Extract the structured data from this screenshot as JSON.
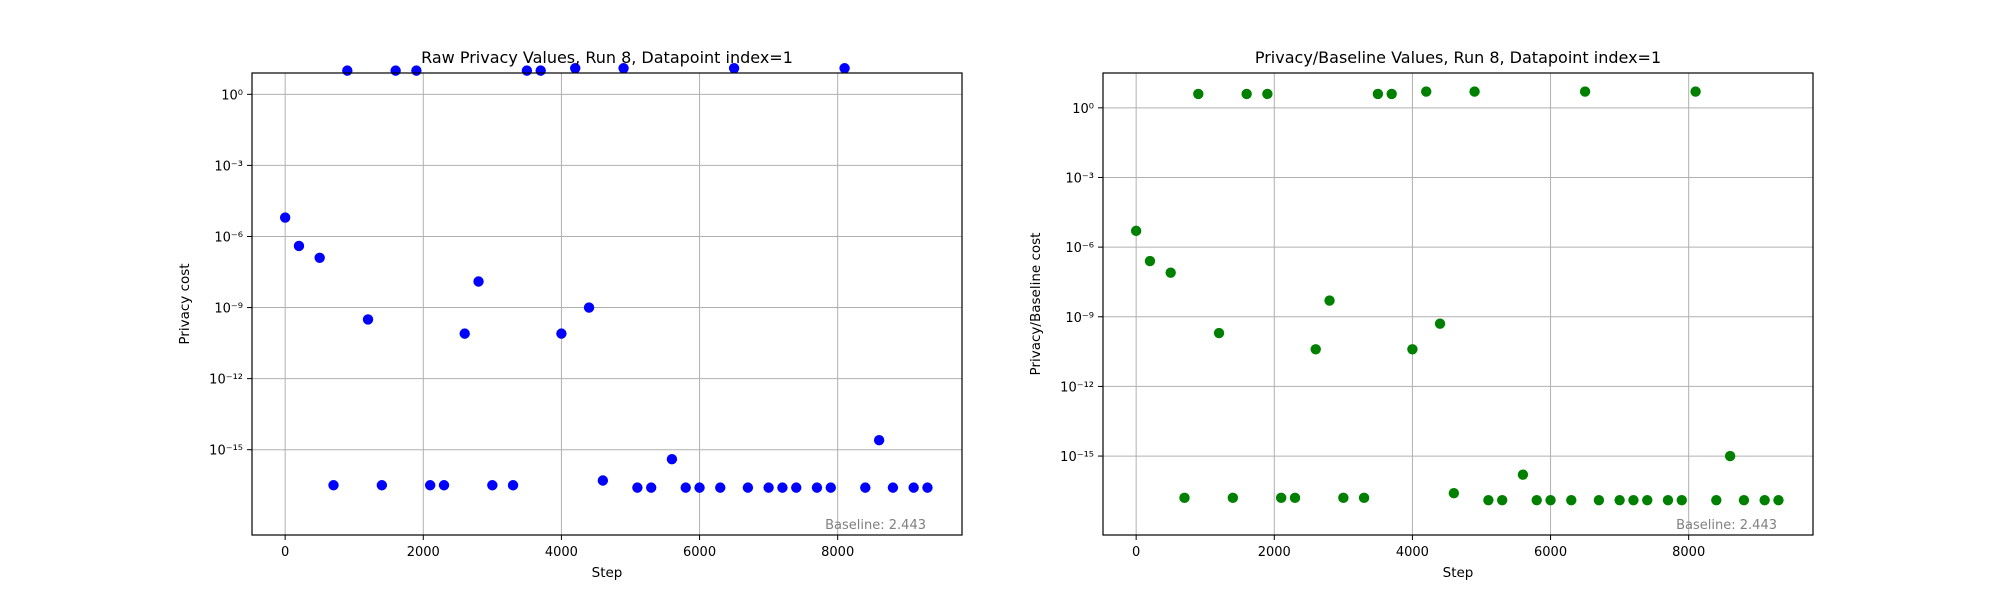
{
  "chart_data": [
    {
      "type": "scatter",
      "title": "Raw Privacy Values, Run 8, Datapoint index=1",
      "xlabel": "Step",
      "ylabel": "Privacy cost",
      "yscale": "log",
      "xlim": [
        -480,
        9800
      ],
      "ylim_exp": [
        -18.6,
        0.9
      ],
      "xticks": [
        0,
        2000,
        4000,
        6000,
        8000
      ],
      "yticks_exp": [
        0,
        -3,
        -6,
        -9,
        -12,
        -15
      ],
      "grid": true,
      "color": "#0000ff",
      "annotation": "Baseline: 2.443",
      "x": [
        0,
        200,
        500,
        700,
        900,
        1200,
        1400,
        1600,
        1900,
        2100,
        2300,
        2600,
        2800,
        3000,
        3300,
        3500,
        3700,
        4000,
        4200,
        4400,
        4600,
        4900,
        5100,
        5300,
        5600,
        5800,
        6000,
        6300,
        6500,
        6700,
        7000,
        7200,
        7400,
        7700,
        7900,
        8100,
        8400,
        8600,
        8800,
        9100,
        9300
      ],
      "y_exp": [
        -5.2,
        -6.4,
        -6.9,
        -16.5,
        1.0,
        -9.5,
        -16.5,
        1.0,
        1.0,
        -16.5,
        -16.5,
        -10.1,
        -7.9,
        -16.5,
        -16.5,
        1.0,
        1.0,
        -10.1,
        1.1,
        -9.0,
        -16.3,
        1.1,
        -16.6,
        -16.6,
        -15.4,
        -16.6,
        -16.6,
        -16.6,
        1.1,
        -16.6,
        -16.6,
        -16.6,
        -16.6,
        -16.6,
        -16.6,
        1.1,
        -16.6,
        -14.6,
        -16.6,
        -16.6,
        -16.6
      ]
    },
    {
      "type": "scatter",
      "title": "Privacy/Baseline Values, Run 8, Datapoint index=1",
      "xlabel": "Step",
      "ylabel": "Privacy/Baseline cost",
      "yscale": "log",
      "xlim": [
        -480,
        9800
      ],
      "ylim_exp": [
        -18.4,
        1.5
      ],
      "xticks": [
        0,
        2000,
        4000,
        6000,
        8000
      ],
      "yticks_exp": [
        0,
        -3,
        -6,
        -9,
        -12,
        -15
      ],
      "grid": true,
      "color": "#008000",
      "annotation": "Baseline: 2.443",
      "x": [
        0,
        200,
        500,
        700,
        900,
        1200,
        1400,
        1600,
        1900,
        2100,
        2300,
        2600,
        2800,
        3000,
        3300,
        3500,
        3700,
        4000,
        4200,
        4400,
        4600,
        4900,
        5100,
        5300,
        5600,
        5800,
        6000,
        6300,
        6500,
        6700,
        7000,
        7200,
        7400,
        7700,
        7900,
        8100,
        8400,
        8600,
        8800,
        9100,
        9300
      ],
      "y_exp": [
        -5.3,
        -6.6,
        -7.1,
        -16.8,
        0.6,
        -9.7,
        -16.8,
        0.6,
        0.6,
        -16.8,
        -16.8,
        -10.4,
        -8.3,
        -16.8,
        -16.8,
        0.6,
        0.6,
        -10.4,
        0.7,
        -9.3,
        -16.6,
        0.7,
        -16.9,
        -16.9,
        -15.8,
        -16.9,
        -16.9,
        -16.9,
        0.7,
        -16.9,
        -16.9,
        -16.9,
        -16.9,
        -16.9,
        -16.9,
        0.7,
        -16.9,
        -15.0,
        -16.9,
        -16.9,
        -16.9
      ]
    }
  ]
}
